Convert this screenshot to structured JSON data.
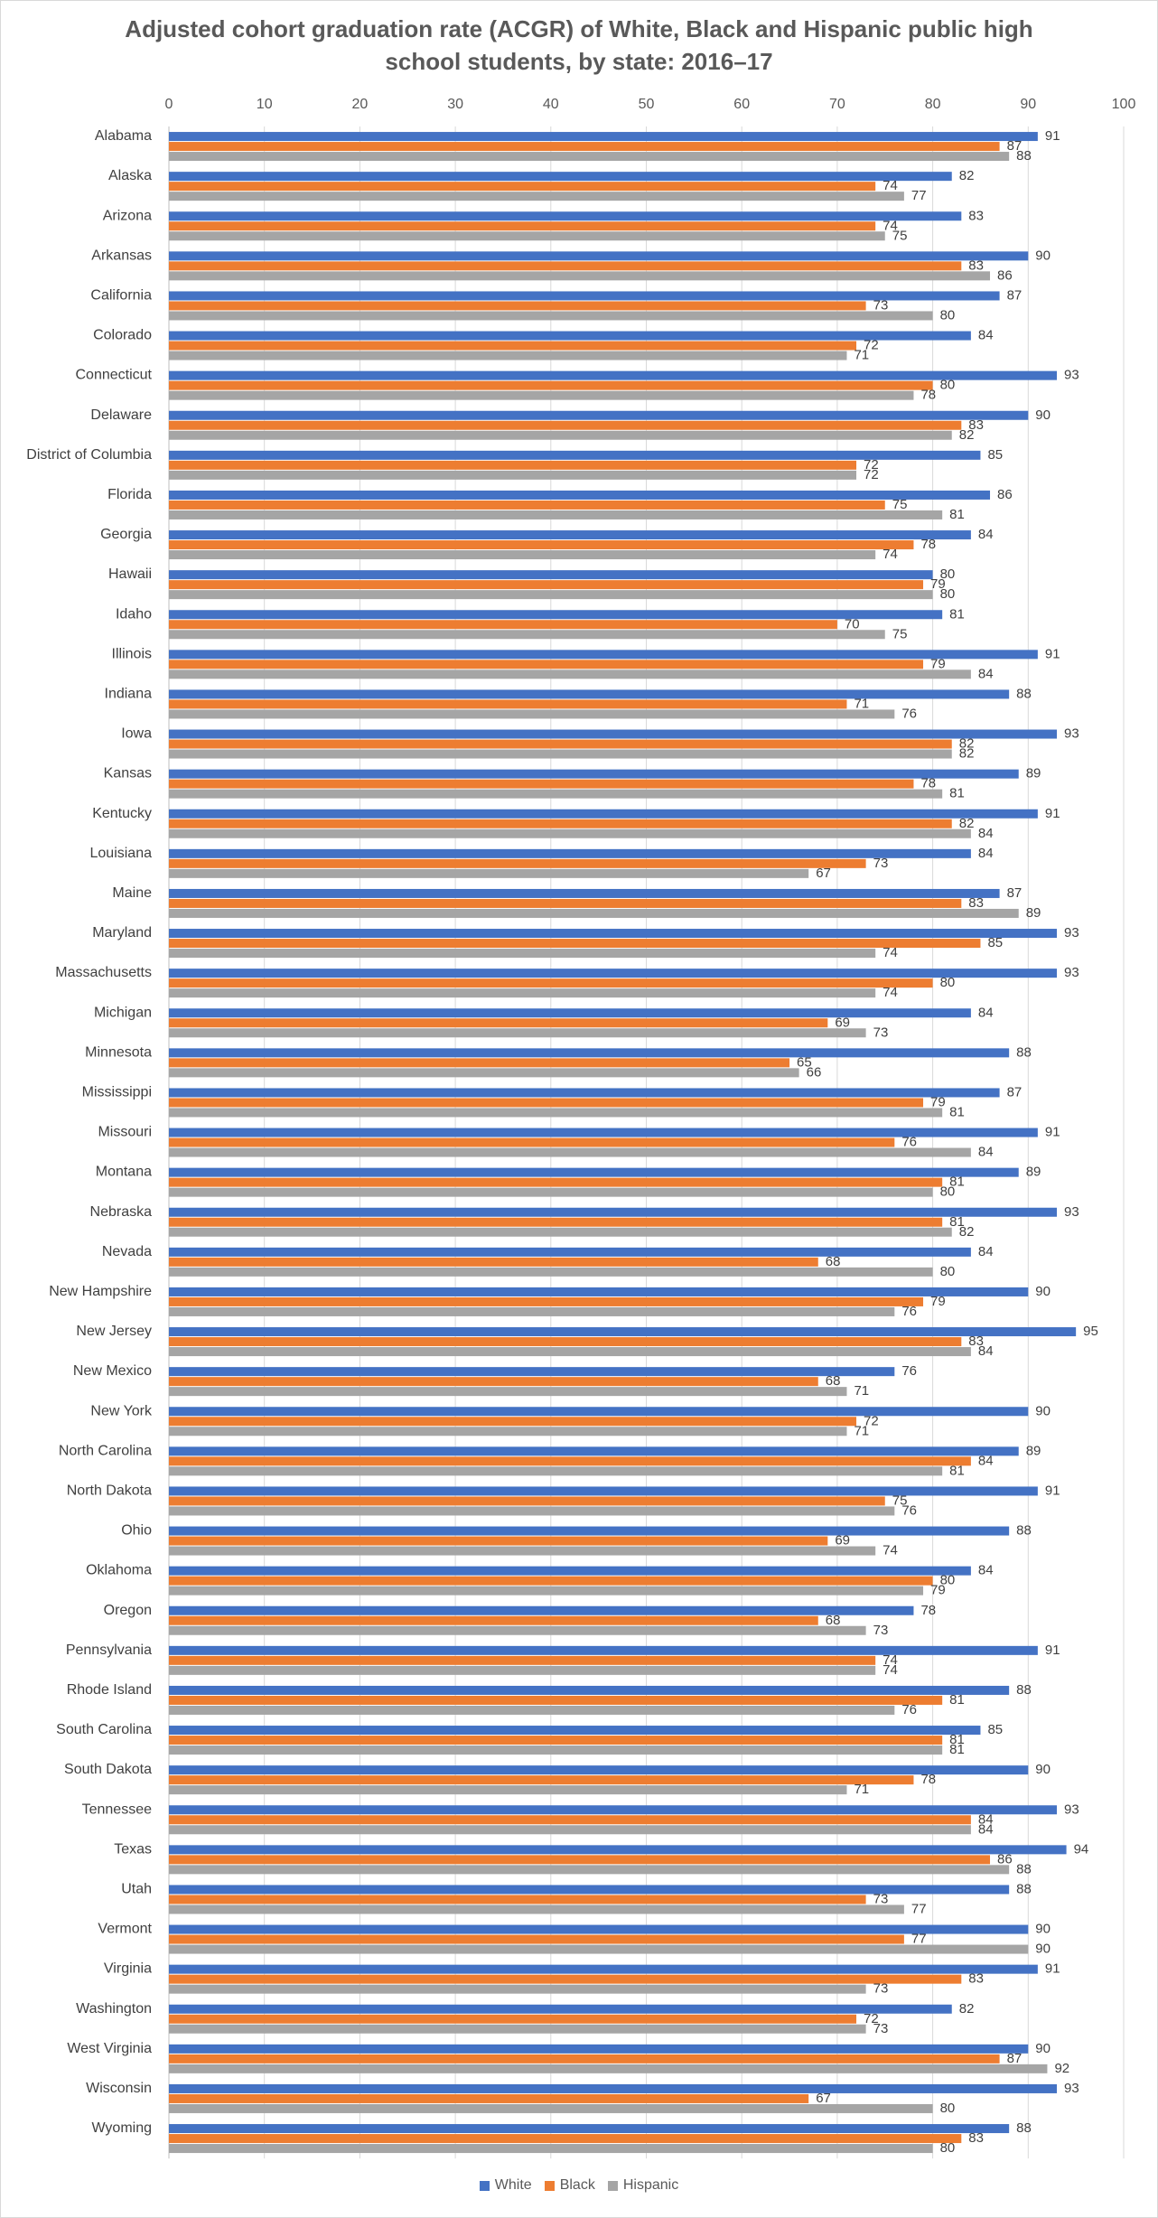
{
  "chart_data": {
    "type": "bar",
    "orientation": "horizontal",
    "title_lines": [
      "Adjusted cohort graduation rate (ACGR) of White, Black and Hispanic public high",
      "school students, by state: 2016–17"
    ],
    "xlim": [
      0,
      100
    ],
    "x_ticks": [
      0,
      10,
      20,
      30,
      40,
      50,
      60,
      70,
      80,
      90,
      100
    ],
    "x_axis_position": "top",
    "grid": true,
    "legend_position": "bottom",
    "categories": [
      "Alabama",
      "Alaska",
      "Arizona",
      "Arkansas",
      "California",
      "Colorado",
      "Connecticut",
      "Delaware",
      "District of Columbia",
      "Florida",
      "Georgia",
      "Hawaii",
      "Idaho",
      "Illinois",
      "Indiana",
      "Iowa",
      "Kansas",
      "Kentucky",
      "Louisiana",
      "Maine",
      "Maryland",
      "Massachusetts",
      "Michigan",
      "Minnesota",
      "Mississippi",
      "Missouri",
      "Montana",
      "Nebraska",
      "Nevada",
      "New Hampshire",
      "New Jersey",
      "New Mexico",
      "New York",
      "North Carolina",
      "North Dakota",
      "Ohio",
      "Oklahoma",
      "Oregon",
      "Pennsylvania",
      "Rhode Island",
      "South Carolina",
      "South Dakota",
      "Tennessee",
      "Texas",
      "Utah",
      "Vermont",
      "Virginia",
      "Washington",
      "West Virginia",
      "Wisconsin",
      "Wyoming"
    ],
    "series": [
      {
        "name": "White",
        "color": "#4472c4",
        "values": [
          91,
          82,
          83,
          90,
          87,
          84,
          93,
          90,
          85,
          86,
          84,
          80,
          81,
          91,
          88,
          93,
          89,
          91,
          84,
          87,
          93,
          93,
          84,
          88,
          87,
          91,
          89,
          93,
          84,
          90,
          95,
          76,
          90,
          89,
          91,
          88,
          84,
          78,
          91,
          88,
          85,
          90,
          93,
          94,
          88,
          90,
          91,
          82,
          90,
          93,
          88
        ]
      },
      {
        "name": "Black",
        "color": "#ed7d31",
        "values": [
          87,
          74,
          74,
          83,
          73,
          72,
          80,
          83,
          72,
          75,
          78,
          79,
          70,
          79,
          71,
          82,
          78,
          82,
          73,
          83,
          85,
          80,
          69,
          65,
          79,
          76,
          81,
          81,
          68,
          79,
          83,
          68,
          72,
          84,
          75,
          69,
          80,
          68,
          74,
          81,
          81,
          78,
          84,
          86,
          73,
          77,
          83,
          72,
          87,
          67,
          83
        ]
      },
      {
        "name": "Hispanic",
        "color": "#a5a5a5",
        "values": [
          88,
          77,
          75,
          86,
          80,
          71,
          78,
          82,
          72,
          81,
          74,
          80,
          75,
          84,
          76,
          82,
          81,
          84,
          67,
          89,
          74,
          74,
          73,
          66,
          81,
          84,
          80,
          82,
          80,
          76,
          84,
          71,
          71,
          81,
          76,
          74,
          79,
          73,
          74,
          76,
          81,
          71,
          84,
          88,
          77,
          90,
          73,
          73,
          92,
          80,
          80
        ]
      }
    ]
  }
}
